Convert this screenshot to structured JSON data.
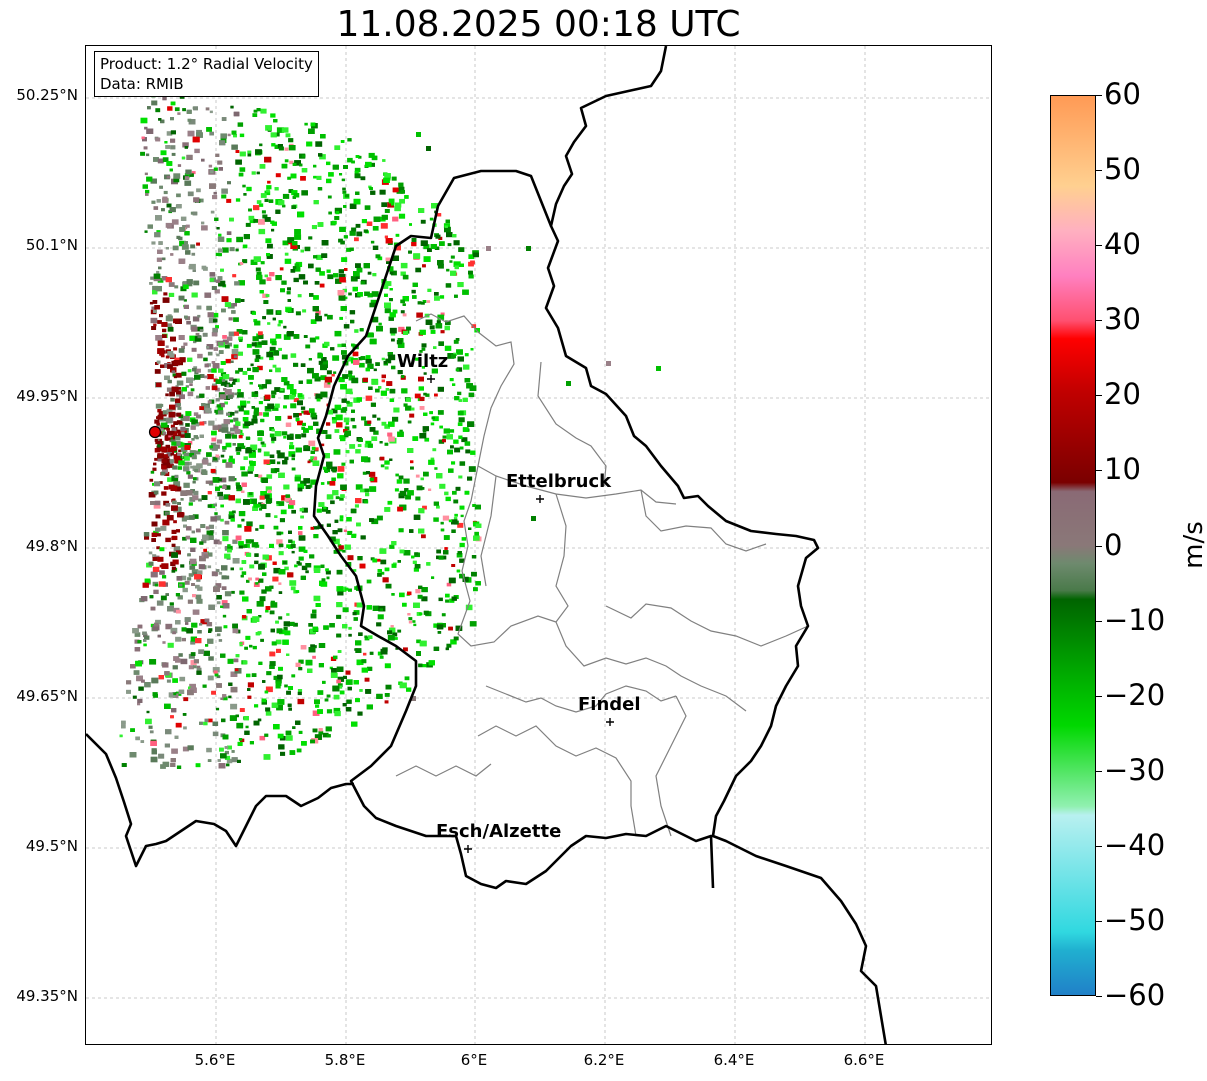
{
  "title": "11.08.2025 00:18 UTC",
  "info": {
    "product": "Product: 1.2° Radial Velocity",
    "data": "Data: RMIB"
  },
  "map": {
    "type": "radar-velocity-map",
    "lat_labels": [
      "50.25°N",
      "50.1°N",
      "49.95°N",
      "49.8°N",
      "49.65°N",
      "49.5°N",
      "49.35°N"
    ],
    "lon_labels": [
      "5.6°E",
      "5.8°E",
      "6°E",
      "6.2°E",
      "6.4°E",
      "6.6°E"
    ],
    "grid": true,
    "radar_site_color": "#e00000",
    "cities": [
      {
        "name": "Wiltz"
      },
      {
        "name": "Ettelbruck"
      },
      {
        "name": "Findel"
      },
      {
        "name": "Esch/Alzette"
      }
    ]
  },
  "colorbar": {
    "unit": "m/s",
    "min": -60,
    "max": 60,
    "ticks": [
      "60",
      "50",
      "40",
      "30",
      "20",
      "10",
      "0",
      "−10",
      "−20",
      "−30",
      "−40",
      "−50",
      "−60"
    ],
    "colors": {
      "top_orange": "#ff9a55",
      "pink": "#ff80c0",
      "red": "#ff0000",
      "dark_red": "#7a0000",
      "mauve": "#8a6a75",
      "grey_green": "#6e8a6e",
      "dark_green": "#006400",
      "green": "#00d800",
      "light_cyan": "#b8f0f0",
      "cyan": "#30d8e0",
      "blue": "#2080c8"
    }
  }
}
